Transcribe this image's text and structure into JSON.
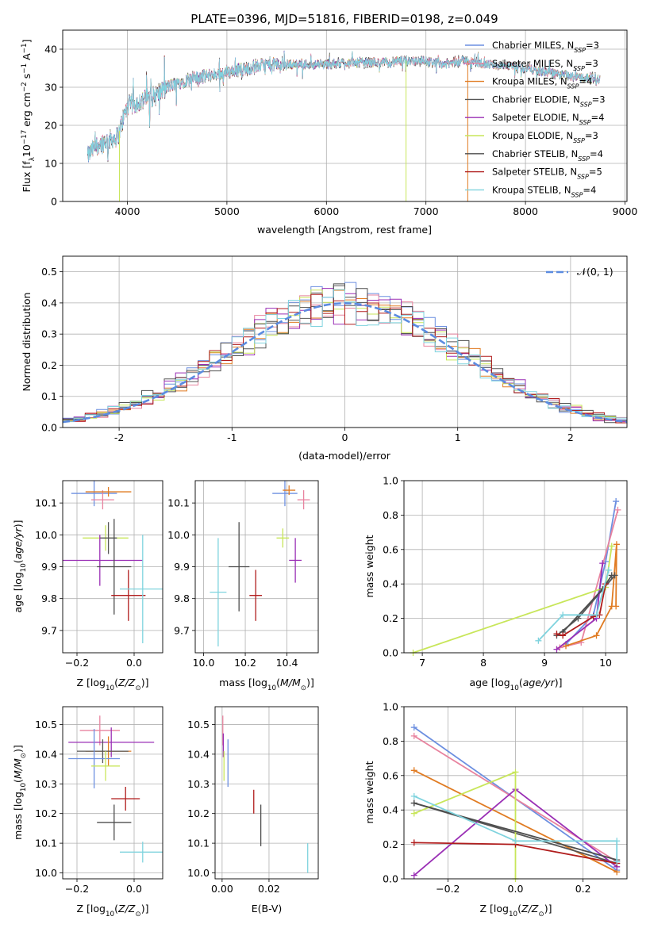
{
  "figure_title": "PLATE=0396, MJD=51816, FIBERID=0198, z=0.049",
  "colors": {
    "Chabrier MILES": "#6c8fe0",
    "Salpeter MILES": "#e8839f",
    "Kroupa MILES": "#e07b22",
    "Chabrier ELODIE": "#565656",
    "Salpeter ELODIE": "#9a2fb5",
    "Kroupa ELODIE": "#c8e65a",
    "Chabrier STELIB": "#4d4d4d",
    "Salpeter STELIB": "#b01c1c",
    "Kroupa STELIB": "#7fd3de",
    "normal": "#5b8be0"
  },
  "chart_data": [
    {
      "id": "spectrum",
      "type": "line",
      "xlabel": "wavelength [Angstrom, rest frame]",
      "ylabel": "Flux [f_λ 10^-17 erg cm^-2 s^-1 A^-1]",
      "xlim": [
        3350,
        9020
      ],
      "ylim": [
        0,
        45
      ],
      "xticks": [
        4000,
        5000,
        6000,
        7000,
        8000,
        9000
      ],
      "yticks": [
        0,
        10,
        20,
        30,
        40
      ],
      "legend_position": "top-right",
      "legend": [
        {
          "base": "Chabrier MILES, N",
          "sub": "SSP",
          "tail": "=3"
        },
        {
          "base": "Salpeter MILES, N",
          "sub": "SSP",
          "tail": "=3"
        },
        {
          "base": "Kroupa MILES, N",
          "sub": "SSP",
          "tail": "=4"
        },
        {
          "base": "Chabrier ELODIE, N",
          "sub": "SSP",
          "tail": "=3"
        },
        {
          "base": "Salpeter ELODIE, N",
          "sub": "SSP",
          "tail": "=4"
        },
        {
          "base": "Kroupa ELODIE, N",
          "sub": "SSP",
          "tail": "=3"
        },
        {
          "base": "Chabrier STELIB, N",
          "sub": "SSP",
          "tail": "=4"
        },
        {
          "base": "Salpeter STELIB, N",
          "sub": "SSP",
          "tail": "=5"
        },
        {
          "base": "Kroupa STELIB, N",
          "sub": "SSP",
          "tail": "=4"
        }
      ],
      "continuum": {
        "wavelength": [
          3600,
          3700,
          3800,
          3900,
          4000,
          4100,
          4200,
          4300,
          4400,
          4600,
          4800,
          5000,
          5200,
          5400,
          5600,
          5800,
          6000,
          6200,
          6400,
          6600,
          6800,
          7000,
          7200,
          7400,
          7600,
          7800,
          8000,
          8200,
          8400,
          8600,
          8750
        ],
        "flux": [
          12,
          15,
          16,
          17,
          25,
          26,
          27,
          28,
          30,
          32,
          33,
          34,
          35,
          36,
          36,
          36,
          36,
          36.5,
          36.5,
          36.5,
          37,
          37,
          36,
          37,
          36,
          35.5,
          35,
          34,
          33,
          32.5,
          32
        ]
      },
      "spikes": [
        {
          "series": "Kroupa ELODIE",
          "wavelength": 3920,
          "flux": 0
        },
        {
          "series": "Kroupa ELODIE",
          "wavelength": 6800,
          "flux": 0
        },
        {
          "series": "Kroupa MILES",
          "wavelength": 7420,
          "flux": 0
        }
      ]
    },
    {
      "id": "residuals",
      "type": "step",
      "xlabel": "(data-model)/error",
      "ylabel": "Normed distribution",
      "xlim": [
        -2.5,
        2.5
      ],
      "ylim": [
        0,
        0.55
      ],
      "xticks": [
        -2,
        -1,
        0,
        1,
        2
      ],
      "yticks": [
        0.0,
        0.1,
        0.2,
        0.3,
        0.4,
        0.5
      ],
      "legend_position": "top-right",
      "normal_label": "𝒩(0, 1)",
      "bin_width": 0.1
    },
    {
      "id": "age-vs-Z",
      "type": "errorbar",
      "xlabel": "Z [log10(Z/Z_sun)]",
      "ylabel": "age [log10(age/yr)]",
      "xlim": [
        -0.25,
        0.1
      ],
      "ylim": [
        9.63,
        10.17
      ],
      "xticks": [
        -0.2,
        0.0
      ],
      "yticks": [
        9.7,
        9.8,
        9.9,
        10.0,
        10.1
      ],
      "points": [
        {
          "series": "Chabrier MILES",
          "x": -0.14,
          "xerr": 0.08,
          "y": 10.13,
          "yerr": 0.04
        },
        {
          "series": "Salpeter MILES",
          "x": -0.11,
          "xerr": 0.04,
          "y": 10.11,
          "yerr": 0.03
        },
        {
          "series": "Kroupa MILES",
          "x": -0.09,
          "xerr": 0.08,
          "y": 10.135,
          "yerr": 0.015
        },
        {
          "series": "Kroupa ELODIE",
          "x": -0.1,
          "xerr": 0.08,
          "y": 9.99,
          "yerr": 0.04
        },
        {
          "series": "Chabrier ELODIE",
          "x": -0.09,
          "xerr": 0.03,
          "y": 9.99,
          "yerr": 0.05
        },
        {
          "series": "Salpeter ELODIE",
          "x": -0.12,
          "xerr": 0.15,
          "y": 9.92,
          "yerr": 0.08
        },
        {
          "series": "Chabrier STELIB",
          "x": -0.07,
          "xerr": 0.06,
          "y": 9.9,
          "yerr": 0.15
        },
        {
          "series": "Salpeter STELIB",
          "x": -0.02,
          "xerr": 0.06,
          "y": 9.81,
          "yerr": 0.08
        },
        {
          "series": "Kroupa STELIB",
          "x": 0.03,
          "xerr": 0.08,
          "y": 9.83,
          "yerr": 0.17
        }
      ]
    },
    {
      "id": "age-vs-mass",
      "type": "errorbar",
      "xlabel": "mass [log10(M/M_sun)]",
      "ylabel": "",
      "xlim": [
        9.96,
        10.55
      ],
      "ylim": [
        9.63,
        10.17
      ],
      "xticks": [
        10.0,
        10.2,
        10.4
      ],
      "yticks": [
        9.7,
        9.8,
        9.9,
        10.0,
        10.1
      ],
      "points": [
        {
          "series": "Chabrier MILES",
          "x": 10.39,
          "xerr": 0.06,
          "y": 10.13,
          "yerr": 0.04
        },
        {
          "series": "Salpeter MILES",
          "x": 10.48,
          "xerr": 0.03,
          "y": 10.11,
          "yerr": 0.03
        },
        {
          "series": "Kroupa MILES",
          "x": 10.41,
          "xerr": 0.03,
          "y": 10.14,
          "yerr": 0.015
        },
        {
          "series": "Kroupa ELODIE",
          "x": 10.38,
          "xerr": 0.03,
          "y": 9.99,
          "yerr": 0.03
        },
        {
          "series": "Salpeter ELODIE",
          "x": 10.44,
          "xerr": 0.03,
          "y": 9.92,
          "yerr": 0.07
        },
        {
          "series": "Chabrier STELIB",
          "x": 10.17,
          "xerr": 0.05,
          "y": 9.9,
          "yerr": 0.14
        },
        {
          "series": "Salpeter STELIB",
          "x": 10.25,
          "xerr": 0.03,
          "y": 9.81,
          "yerr": 0.08
        },
        {
          "series": "Kroupa STELIB",
          "x": 10.07,
          "xerr": 0.04,
          "y": 9.82,
          "yerr": 0.17
        }
      ]
    },
    {
      "id": "massweight-vs-age",
      "type": "line",
      "xlabel": "age [log10(age/yr)]",
      "ylabel": "mass weight",
      "xlim": [
        6.7,
        10.35
      ],
      "ylim": [
        0,
        1.0
      ],
      "xticks": [
        7,
        8,
        9,
        10
      ],
      "yticks": [
        0.0,
        0.2,
        0.4,
        0.6,
        0.8,
        1.0
      ],
      "series": [
        {
          "name": "Chabrier MILES",
          "x": [
            9.35,
            9.8,
            10.0,
            10.17
          ],
          "y": [
            0.05,
            0.22,
            0.53,
            0.88
          ]
        },
        {
          "name": "Salpeter MILES",
          "x": [
            9.25,
            9.6,
            10.2
          ],
          "y": [
            0.03,
            0.06,
            0.83
          ]
        },
        {
          "name": "Kroupa MILES",
          "x": [
            9.35,
            9.85,
            10.1,
            10.18,
            10.17
          ],
          "y": [
            0.04,
            0.1,
            0.27,
            0.63,
            0.27
          ]
        },
        {
          "name": "Chabrier ELODIE",
          "x": [
            9.2,
            9.55,
            10.15
          ],
          "y": [
            0.1,
            0.2,
            0.45
          ]
        },
        {
          "name": "Salpeter ELODIE",
          "x": [
            9.2,
            9.85,
            9.95
          ],
          "y": [
            0.02,
            0.2,
            0.52
          ]
        },
        {
          "name": "Kroupa ELODIE",
          "x": [
            6.85,
            10.0,
            10.1
          ],
          "y": [
            0.0,
            0.38,
            0.62
          ]
        },
        {
          "name": "Chabrier STELIB",
          "x": [
            9.3,
            9.95,
            10.1
          ],
          "y": [
            0.12,
            0.37,
            0.45
          ]
        },
        {
          "name": "Salpeter STELIB",
          "x": [
            9.2,
            9.3,
            9.8,
            9.9,
            10.0
          ],
          "y": [
            0.11,
            0.1,
            0.21,
            0.22,
            0.4
          ]
        },
        {
          "name": "Kroupa STELIB",
          "x": [
            8.9,
            9.3,
            9.85,
            10.05
          ],
          "y": [
            0.07,
            0.22,
            0.22,
            0.48
          ]
        }
      ]
    },
    {
      "id": "mass-vs-Z",
      "type": "errorbar",
      "xlabel": "Z [log10(Z/Z_sun)]",
      "ylabel": "mass [log10(M/M_sun)]",
      "xlim": [
        -0.25,
        0.1
      ],
      "ylim": [
        9.98,
        10.56
      ],
      "xticks": [
        -0.2,
        0.0
      ],
      "yticks": [
        10.0,
        10.1,
        10.2,
        10.3,
        10.4,
        10.5
      ],
      "points": [
        {
          "series": "Salpeter MILES",
          "x": -0.12,
          "xerr": 0.07,
          "y": 10.48,
          "yerr": 0.05
        },
        {
          "series": "Salpeter ELODIE",
          "x": -0.08,
          "xerr": 0.15,
          "y": 10.44,
          "yerr": 0.05
        },
        {
          "series": "Kroupa MILES",
          "x": -0.09,
          "xerr": 0.08,
          "y": 10.41,
          "yerr": 0.05
        },
        {
          "series": "Chabrier ELODIE",
          "x": -0.11,
          "xerr": 0.09,
          "y": 10.41,
          "yerr": 0.04
        },
        {
          "series": "Chabrier MILES",
          "x": -0.14,
          "xerr": 0.09,
          "y": 10.385,
          "yerr": 0.1
        },
        {
          "series": "Kroupa ELODIE",
          "x": -0.1,
          "xerr": 0.05,
          "y": 10.36,
          "yerr": 0.05
        },
        {
          "series": "Salpeter STELIB",
          "x": -0.03,
          "xerr": 0.05,
          "y": 10.25,
          "yerr": 0.04
        },
        {
          "series": "Chabrier STELIB",
          "x": -0.07,
          "xerr": 0.06,
          "y": 10.17,
          "yerr": 0.06
        },
        {
          "series": "Kroupa STELIB",
          "x": 0.03,
          "xerr": 0.08,
          "y": 10.07,
          "yerr": 0.035
        }
      ]
    },
    {
      "id": "mass-vs-EBV",
      "type": "errorbar",
      "xlabel": "E(B-V)",
      "ylabel": "",
      "xlim": [
        -0.003,
        0.041
      ],
      "ylim": [
        9.98,
        10.56
      ],
      "xticks": [
        0.0,
        0.02
      ],
      "yticks": [
        10.0,
        10.1,
        10.2,
        10.3,
        10.4,
        10.5
      ],
      "points": [
        {
          "series": "Salpeter MILES",
          "x": 0.0003,
          "y": 10.48,
          "yerr": 0.05
        },
        {
          "series": "Salpeter ELODIE",
          "x": 0.0005,
          "y": 10.43,
          "yerr": 0.04
        },
        {
          "series": "Kroupa ELODIE",
          "x": 0.0008,
          "y": 10.36,
          "yerr": 0.05
        },
        {
          "series": "Chabrier MILES",
          "x": 0.0025,
          "y": 10.37,
          "yerr": 0.08
        },
        {
          "series": "Salpeter STELIB",
          "x": 0.0135,
          "y": 10.24,
          "yerr": 0.04
        },
        {
          "series": "Chabrier STELIB",
          "x": 0.0165,
          "y": 10.16,
          "yerr": 0.07
        },
        {
          "series": "Kroupa STELIB",
          "x": 0.0365,
          "y": 10.05,
          "yerr": 0.05
        }
      ]
    },
    {
      "id": "massweight-vs-Z",
      "type": "line",
      "xlabel": "Z [log10(Z/Z_sun)]",
      "ylabel": "mass weight",
      "xlim": [
        -0.33,
        0.33
      ],
      "ylim": [
        0,
        1.0
      ],
      "xticks": [
        -0.2,
        0.0,
        0.2
      ],
      "yticks": [
        0.0,
        0.2,
        0.4,
        0.6,
        0.8,
        1.0
      ],
      "series": [
        {
          "name": "Chabrier MILES",
          "x": [
            -0.3,
            0.3
          ],
          "y": [
            0.88,
            0.05
          ]
        },
        {
          "name": "Salpeter MILES",
          "x": [
            -0.3,
            0.3
          ],
          "y": [
            0.83,
            0.1
          ]
        },
        {
          "name": "Kroupa MILES",
          "x": [
            -0.3,
            0.3
          ],
          "y": [
            0.63,
            0.04
          ]
        },
        {
          "name": "Chabrier ELODIE",
          "x": [
            -0.3,
            0.3
          ],
          "y": [
            0.44,
            0.09
          ]
        },
        {
          "name": "Salpeter ELODIE",
          "x": [
            -0.3,
            0.0,
            0.3
          ],
          "y": [
            0.02,
            0.52,
            0.07
          ]
        },
        {
          "name": "Kroupa ELODIE",
          "x": [
            -0.3,
            0.0,
            0.0
          ],
          "y": [
            0.38,
            0.62,
            0.0
          ]
        },
        {
          "name": "Chabrier STELIB",
          "x": [
            -0.3,
            0.3
          ],
          "y": [
            0.44,
            0.11
          ]
        },
        {
          "name": "Salpeter STELIB",
          "x": [
            -0.3,
            0.0,
            0.3
          ],
          "y": [
            0.21,
            0.2,
            0.09
          ]
        },
        {
          "name": "Kroupa STELIB",
          "x": [
            -0.3,
            0.0,
            0.3,
            0.3
          ],
          "y": [
            0.48,
            0.22,
            0.22,
            0.1
          ]
        }
      ]
    }
  ]
}
